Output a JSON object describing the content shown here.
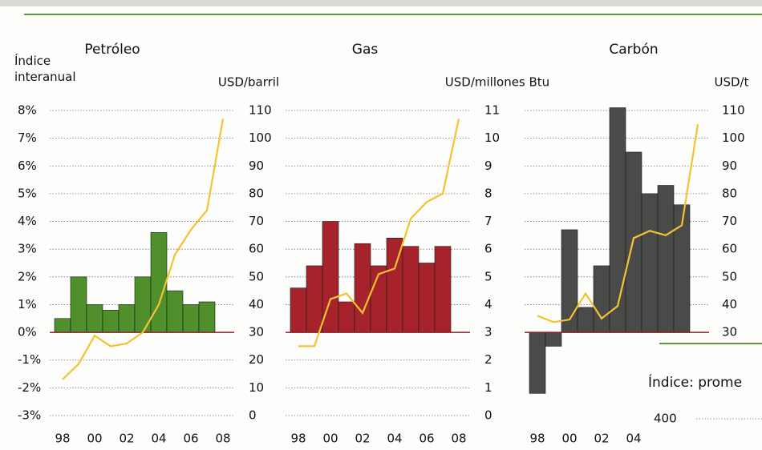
{
  "chart_data": [
    {
      "type": "bar",
      "title": "Petróleo",
      "ylabel": "Índice interanual",
      "y2label": "USD/barril",
      "categories": [
        "98",
        null,
        "00",
        null,
        "02",
        null,
        "04",
        null,
        "06",
        null,
        "08"
      ],
      "series": [
        {
          "type": "bar",
          "color": "#4f8f2c",
          "values": [
            0.5,
            2.0,
            1.0,
            0.8,
            1.0,
            2.0,
            3.6,
            1.5,
            1.0,
            1.1,
            null
          ]
        },
        {
          "type": "line",
          "axis": "y2",
          "color": "#f4c232",
          "values": [
            13,
            18.6,
            28.8,
            25,
            26,
            30,
            40,
            58,
            67,
            74,
            107
          ]
        }
      ],
      "ylim": [
        -3,
        8
      ],
      "yticks": [
        {
          "value": -3,
          "label": "-3%"
        },
        {
          "value": -2,
          "label": "-2%"
        },
        {
          "value": -1,
          "label": "-1%"
        },
        {
          "value": 0,
          "label": "0%"
        },
        {
          "value": 1,
          "label": "1%"
        },
        {
          "value": 2,
          "label": "2%"
        },
        {
          "value": 3,
          "label": "3%"
        },
        {
          "value": 4,
          "label": "4%"
        },
        {
          "value": 5,
          "label": "5%"
        },
        {
          "value": 6,
          "label": "6%"
        },
        {
          "value": 7,
          "label": "7%"
        },
        {
          "value": 8,
          "label": "8%"
        }
      ],
      "y2lim": [
        0,
        110
      ],
      "y2ticks": [
        0,
        10,
        20,
        30,
        40,
        50,
        60,
        70,
        80,
        90,
        100,
        110
      ],
      "grid": true
    },
    {
      "type": "bar",
      "title": "Gas",
      "y2label": "USD/millones Btu",
      "categories": [
        "98",
        null,
        "00",
        null,
        "02",
        null,
        "04",
        null,
        "06",
        null,
        "08"
      ],
      "series": [
        {
          "type": "bar",
          "color": "#a6232c",
          "values": [
            1.6,
            2.4,
            4.0,
            1.1,
            3.2,
            2.4,
            3.4,
            3.1,
            2.5,
            3.1,
            null
          ]
        },
        {
          "type": "line",
          "axis": "y2",
          "color": "#f4c232",
          "values": [
            2.5,
            2.5,
            4.2,
            4.4,
            3.7,
            5.1,
            5.3,
            7.1,
            7.7,
            8.0,
            10.7
          ]
        }
      ],
      "ylim": [
        -3,
        8
      ],
      "y2lim": [
        0,
        11
      ],
      "y2ticks": [
        0,
        1,
        2,
        3,
        4,
        5,
        6,
        7,
        8,
        9,
        10,
        11
      ],
      "grid": true
    },
    {
      "type": "bar",
      "title": "Carbón",
      "y2label": "USD/t",
      "categories": [
        "98",
        null,
        "00",
        null,
        "02",
        null,
        "04",
        null,
        null,
        null,
        null
      ],
      "series": [
        {
          "type": "bar",
          "color": "#4a4a48",
          "values": [
            -2.2,
            -0.5,
            3.7,
            0.9,
            2.4,
            8.1,
            6.5,
            5.0,
            5.3,
            4.6,
            null
          ]
        },
        {
          "type": "line",
          "axis": "y2",
          "color": "#f4c232",
          "values": [
            36,
            33.7,
            34.6,
            44,
            35,
            39.5,
            64,
            66.6,
            65,
            68.6,
            105
          ]
        }
      ],
      "ylim": [
        -3,
        8
      ],
      "y2lim": [
        0,
        110
      ],
      "y2ticks": [
        30,
        40,
        50,
        60,
        70,
        80,
        90,
        100,
        110
      ],
      "grid": true
    }
  ],
  "inset": {
    "title": "Índice: prome",
    "tick": "400"
  }
}
